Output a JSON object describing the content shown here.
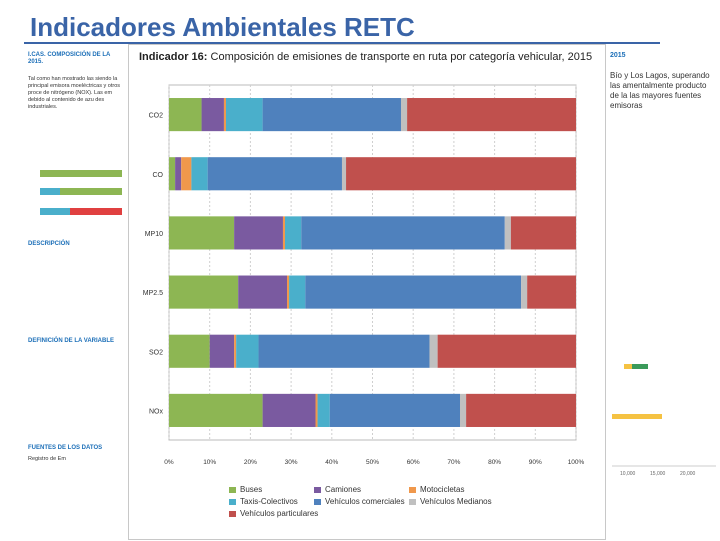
{
  "slide": {
    "title": "Indicadores Ambientales RETC"
  },
  "background_doc": {
    "left_header": "I.CAS. COMPOSICIÓN DE LA",
    "left_year": "2015.",
    "left_par": "Tal como han mostrado las siendo la principal emisora moeléctricas y otros proce de nitrógeno (NOX). Las em debido al contenido de azu des industriales.",
    "left_section1": "DESCRIPCIÓN",
    "left_section2": "DEFINICIÓN DE LA VARIABLE",
    "left_section3": "FUENTES DE LOS DATOS",
    "left_source": "Registro de Em",
    "right_header": "2015",
    "right_par": "Bío y Los Lagos, superando las amentalmente producto de la las mayores fuentes emisoras",
    "right_axis_a": "10,000",
    "right_axis_b": "15,000",
    "right_axis_c": "20,000"
  },
  "colors": {
    "buses": "#8db653",
    "camiones": "#7a5aa0",
    "motocicletas": "#f0984c",
    "taxis": "#4aafcb",
    "comerciales": "#4f81bd",
    "medianos": "#c0c0c0",
    "particulares": "#c0504d",
    "title": "#3a64a7"
  },
  "chart_data": {
    "type": "bar",
    "orientation": "horizontal",
    "stacked": true,
    "title_prefix": "Indicador 16:",
    "title": "Composición de emisiones de transporte en ruta por categoría vehicular, 2015",
    "categories": [
      "CO2",
      "CO",
      "MP10",
      "MP2.5",
      "SO2",
      "NOx"
    ],
    "xlabel": "",
    "ylabel": "",
    "xlim": [
      0,
      100
    ],
    "x_ticks": [
      "0%",
      "10%",
      "20%",
      "30%",
      "40%",
      "50%",
      "60%",
      "70%",
      "80%",
      "90%",
      "100%"
    ],
    "series": [
      {
        "name": "Buses",
        "color": "#8db653",
        "values": [
          8,
          1.5,
          16,
          17,
          10,
          23
        ]
      },
      {
        "name": "Camiones",
        "color": "#7a5aa0",
        "values": [
          5.5,
          1.5,
          12,
          12,
          6,
          13
        ]
      },
      {
        "name": "Motocicletas",
        "color": "#f0984c",
        "values": [
          0.5,
          2.5,
          0.5,
          0.5,
          0.5,
          0.5
        ]
      },
      {
        "name": "Taxis-Colectivos",
        "color": "#4aafcb",
        "values": [
          9,
          4,
          4,
          4,
          5.5,
          3
        ]
      },
      {
        "name": "Vehículos comerciales",
        "color": "#4f81bd",
        "values": [
          34,
          33,
          50,
          53,
          42,
          32
        ]
      },
      {
        "name": "Vehículos Medianos",
        "color": "#c0c0c0",
        "values": [
          1.5,
          1,
          1.5,
          1.5,
          2,
          1.5
        ]
      },
      {
        "name": "Vehículos particulares",
        "color": "#c0504d",
        "values": [
          41.5,
          56.5,
          16,
          12,
          34,
          27
        ]
      }
    ],
    "legend": [
      "Buses",
      "Camiones",
      "Motocicletas",
      "Taxis-Colectivos",
      "Vehículos comerciales",
      "Vehículos Medianos",
      "Vehículos particulares"
    ],
    "grid": true,
    "legend_position": "bottom"
  }
}
